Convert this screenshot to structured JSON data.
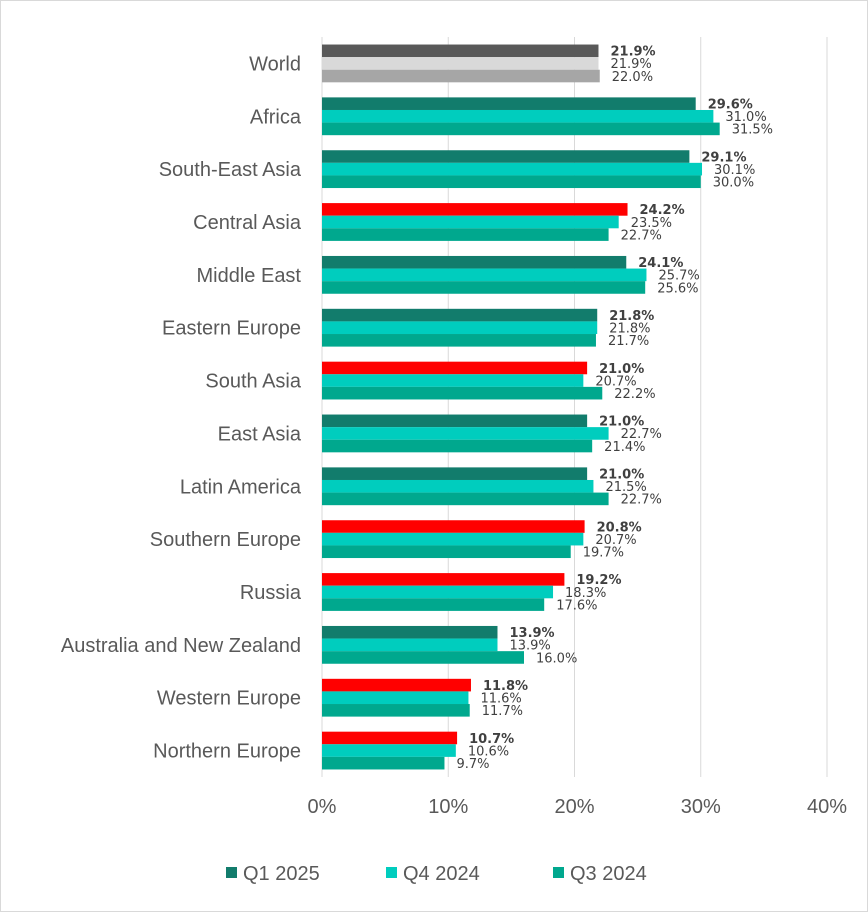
{
  "chart_data": {
    "type": "bar",
    "orientation": "horizontal",
    "categories": [
      "World",
      "Africa",
      "South-East Asia",
      "Central Asia",
      "Middle East",
      "Eastern Europe",
      "South Asia",
      "East Asia",
      "Latin America",
      "Southern Europe",
      "Russia",
      "Australia and New Zealand",
      "Western Europe",
      "Northern Europe"
    ],
    "series": [
      {
        "name": "Q1 2025",
        "values": [
          21.9,
          29.6,
          29.1,
          24.2,
          24.1,
          21.8,
          21.0,
          21.0,
          21.0,
          20.8,
          19.2,
          13.9,
          11.8,
          10.7
        ],
        "color": "#127c6c",
        "bold_labels": true
      },
      {
        "name": "Q4 2024",
        "values": [
          21.9,
          31.0,
          30.1,
          23.5,
          25.7,
          21.8,
          20.7,
          22.7,
          21.5,
          20.7,
          18.3,
          13.9,
          11.6,
          10.6
        ],
        "color": "#00cdbe"
      },
      {
        "name": "Q3 2024",
        "values": [
          22.0,
          31.5,
          30.0,
          22.7,
          25.6,
          21.7,
          22.2,
          21.4,
          22.7,
          19.7,
          17.6,
          16.0,
          11.7,
          9.7
        ],
        "color": "#00a88e"
      }
    ],
    "point_colors": {
      "Q1 2025": [
        "#595959",
        "#127c6c",
        "#127c6c",
        "#ff0000",
        "#127c6c",
        "#127c6c",
        "#ff0000",
        "#127c6c",
        "#127c6c",
        "#ff0000",
        "#ff0000",
        "#127c6c",
        "#ff0000",
        "#ff0000"
      ],
      "Q4 2024": [
        "#d9d9d9",
        "#00cdbe",
        "#00cdbe",
        "#00cdbe",
        "#00cdbe",
        "#00cdbe",
        "#00cdbe",
        "#00cdbe",
        "#00cdbe",
        "#00cdbe",
        "#00cdbe",
        "#00cdbe",
        "#00cdbe",
        "#00cdbe"
      ],
      "Q3 2024": [
        "#a6a6a6",
        "#00a88e",
        "#00a88e",
        "#00a88e",
        "#00a88e",
        "#00a88e",
        "#00a88e",
        "#00a88e",
        "#00a88e",
        "#00a88e",
        "#00a88e",
        "#00a88e",
        "#00a88e",
        "#00a88e"
      ]
    },
    "value_labels": {
      "Q1 2025": [
        "21.9%",
        "29.6%",
        "29.1%",
        "24.2%",
        "24.1%",
        "21.8%",
        "21.0%",
        "21.0%",
        "21.0%",
        "20.8%",
        "19.2%",
        "13.9%",
        "11.8%",
        "10.7%"
      ],
      "Q4 2024": [
        "21.9%",
        "31.0%",
        "30.1%",
        "23.5%",
        "25.7%",
        "21.8%",
        "20.7%",
        "22.7%",
        "21.5%",
        "20.7%",
        "18.3%",
        "13.9%",
        "11.6%",
        "10.6%"
      ],
      "Q3 2024": [
        "22.0%",
        "31.5%",
        "30.0%",
        "22.7%",
        "25.6%",
        "21.7%",
        "22.2%",
        "21.4%",
        "22.7%",
        "19.7%",
        "17.6%",
        "16.0%",
        "11.7%",
        "9.7%"
      ]
    },
    "xlim": [
      0,
      40
    ],
    "xticks": [
      0,
      10,
      20,
      30,
      40
    ],
    "xtick_labels": [
      "0%",
      "10%",
      "20%",
      "30%",
      "40%"
    ],
    "grid": true,
    "legend_position": "bottom",
    "title": "",
    "xlabel": "",
    "ylabel": ""
  }
}
